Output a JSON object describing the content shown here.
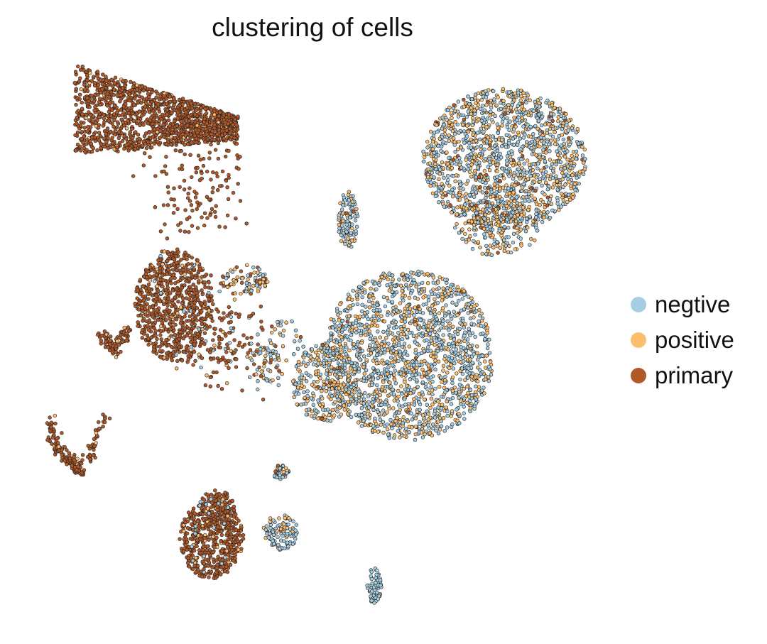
{
  "chart_data": {
    "type": "scatter",
    "title": "clustering of cells",
    "xlabel": "",
    "ylabel": "",
    "axes_visible": false,
    "grid": false,
    "legend_position": "right",
    "series": [
      {
        "name": "negtive",
        "color": "#a6cee3"
      },
      {
        "name": "positive",
        "color": "#fdbf6f"
      },
      {
        "name": "primary",
        "color": "#b15928"
      }
    ]
  }
}
